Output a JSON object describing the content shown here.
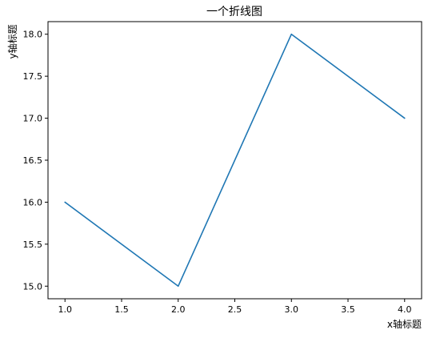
{
  "chart_data": {
    "type": "line",
    "title": "一个折线图",
    "xlabel": "x轴标题",
    "ylabel": "y轴标题",
    "x": [
      1.0,
      2.0,
      3.0,
      4.0
    ],
    "series": [
      {
        "values": [
          16.0,
          15.0,
          18.0,
          17.0
        ],
        "color": "#1f77b4"
      }
    ],
    "xlim": [
      0.85,
      4.15
    ],
    "ylim": [
      14.85,
      18.15
    ],
    "xticks": [
      "1.0",
      "1.5",
      "2.0",
      "2.5",
      "3.0",
      "3.5",
      "4.0"
    ],
    "yticks": [
      "15.0",
      "15.5",
      "16.0",
      "16.5",
      "17.0",
      "17.5",
      "18.0"
    ],
    "grid": false,
    "legend": "none"
  }
}
